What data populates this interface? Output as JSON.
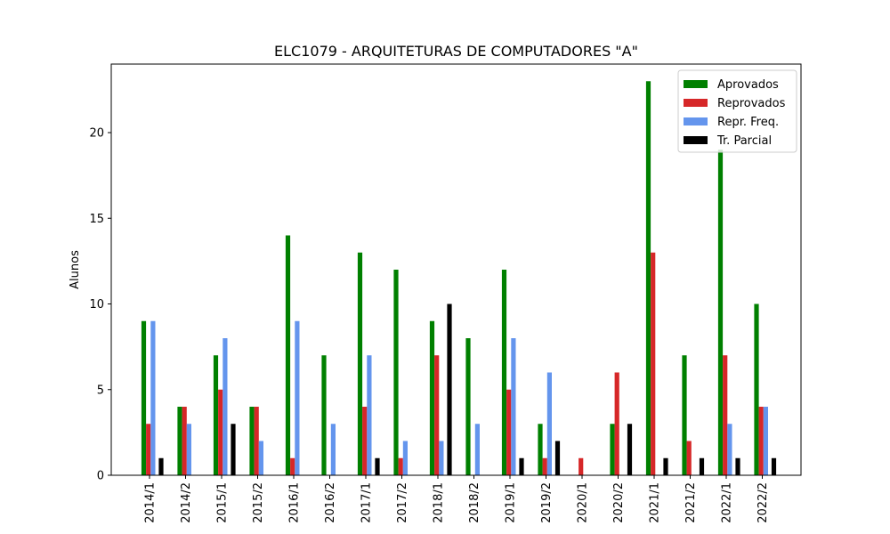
{
  "chart_data": {
    "type": "bar",
    "title": "ELC1079 - ARQUITETURAS DE COMPUTADORES \"A\"",
    "xlabel": "",
    "ylabel": "Alunos",
    "ylim": [
      0,
      24
    ],
    "yticks": [
      0,
      5,
      10,
      15,
      20
    ],
    "grid": false,
    "legend_position": "top-right",
    "categories": [
      "2014/1",
      "2014/2",
      "2015/1",
      "2015/2",
      "2016/1",
      "2016/2",
      "2017/1",
      "2017/2",
      "2018/1",
      "2018/2",
      "2019/1",
      "2019/2",
      "2020/1",
      "2020/2",
      "2021/1",
      "2021/2",
      "2022/1",
      "2022/2"
    ],
    "series": [
      {
        "name": "Aprovados",
        "color": "#008000",
        "values": [
          9,
          4,
          7,
          4,
          14,
          7,
          13,
          12,
          9,
          8,
          12,
          3,
          0,
          3,
          23,
          7,
          19,
          10
        ]
      },
      {
        "name": "Reprovados",
        "color": "#d62728",
        "values": [
          3,
          4,
          5,
          4,
          1,
          0,
          4,
          1,
          7,
          0,
          5,
          1,
          1,
          6,
          13,
          2,
          7,
          4
        ]
      },
      {
        "name": "Repr. Freq.",
        "color": "#6495ed",
        "values": [
          9,
          3,
          8,
          2,
          9,
          3,
          7,
          2,
          2,
          3,
          8,
          6,
          0,
          0,
          0,
          0,
          3,
          4
        ]
      },
      {
        "name": "Tr. Parcial",
        "color": "#000000",
        "values": [
          1,
          0,
          3,
          0,
          0,
          0,
          1,
          0,
          10,
          0,
          1,
          2,
          0,
          3,
          1,
          1,
          1,
          1
        ]
      }
    ]
  }
}
